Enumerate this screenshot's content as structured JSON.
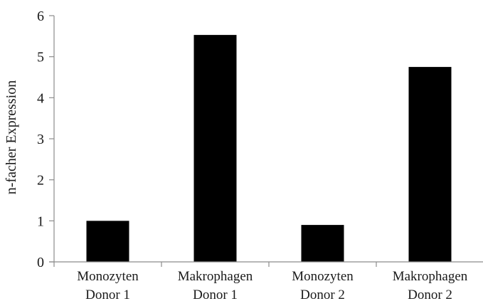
{
  "chart_data": {
    "type": "bar",
    "categories": [
      [
        "Monozyten",
        "Donor 1"
      ],
      [
        "Makrophagen",
        "Donor 1"
      ],
      [
        "Monozyten",
        "Donor 2"
      ],
      [
        "Makrophagen",
        "Donor 2"
      ]
    ],
    "values": [
      1.0,
      5.53,
      0.9,
      4.75
    ],
    "ylabel": "n-facher Expression",
    "ylim": [
      0,
      6
    ],
    "yticks": [
      0,
      1,
      2,
      3,
      4,
      5,
      6
    ],
    "grid": false,
    "bar_color": "#000000"
  }
}
